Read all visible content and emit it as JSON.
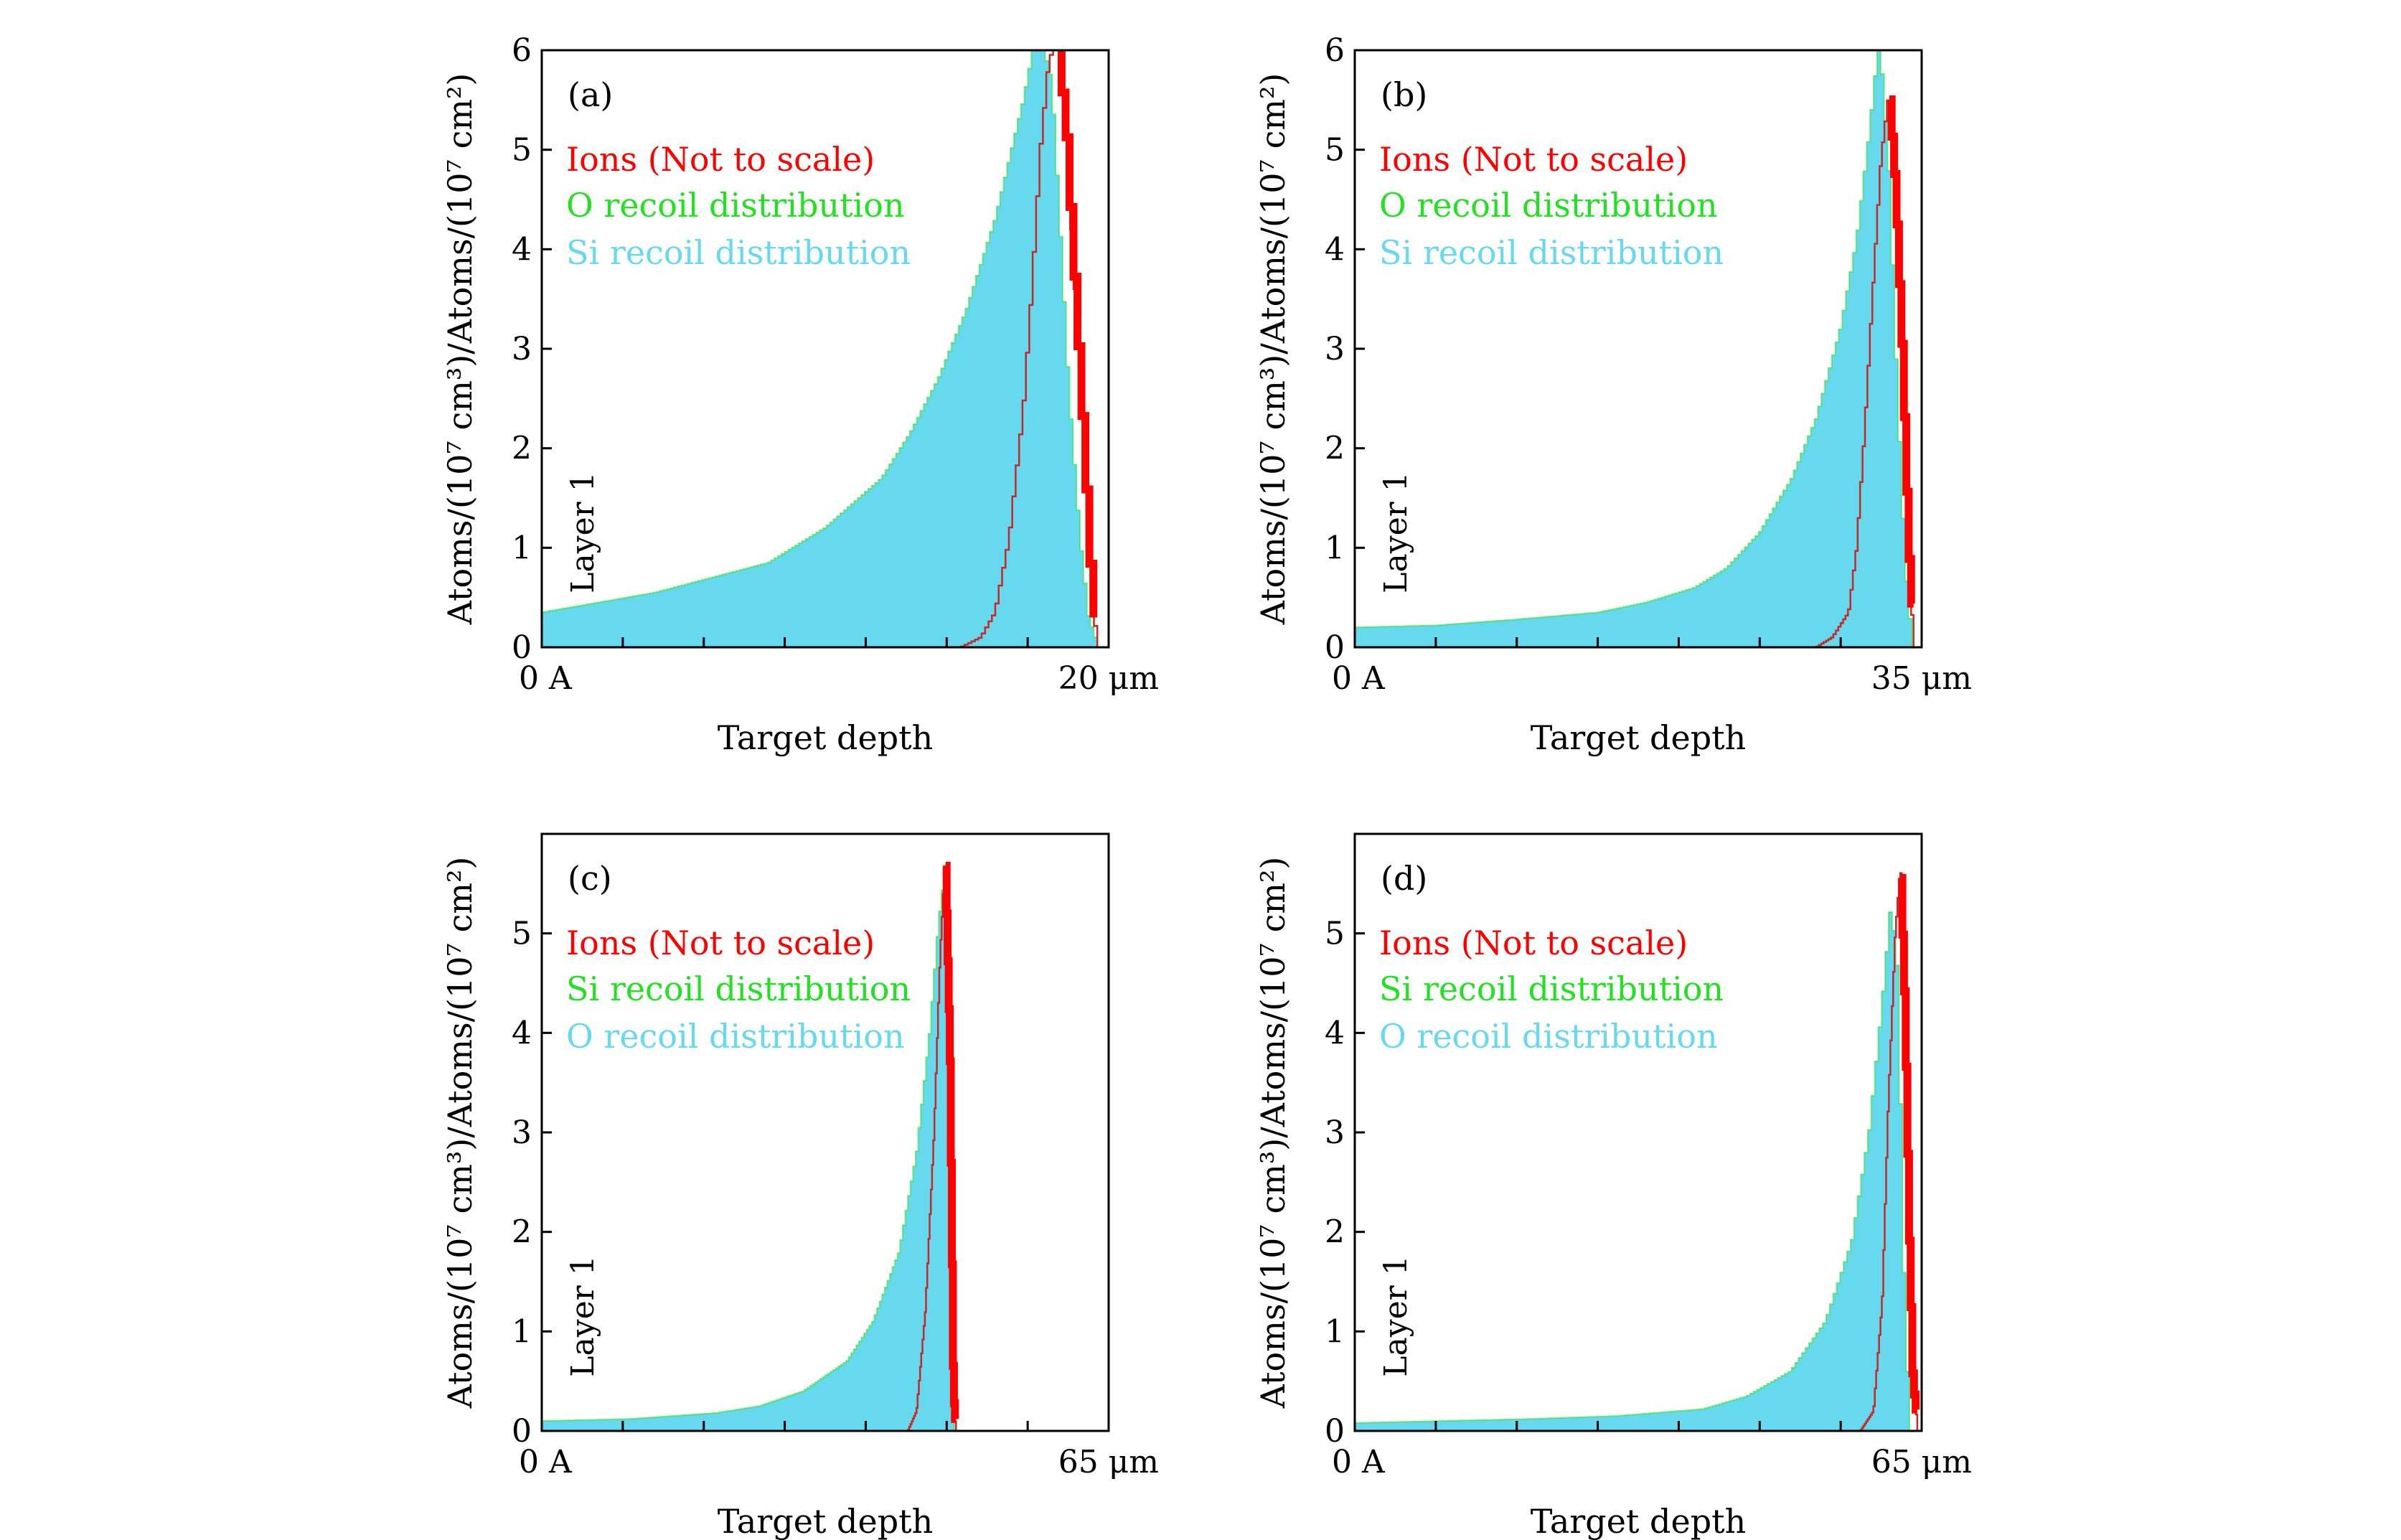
{
  "colors": {
    "ions": "#ff0000",
    "o_recoil": "#22e022",
    "si_recoil": "#66d9ee",
    "ion_line": "#c62828",
    "axis": "#000000"
  },
  "chart_data": [
    {
      "type": "area",
      "panel_label": "(a)",
      "xlabel": "Target depth",
      "ylabel": "Atoms/(10⁷ cm³)/Atoms/(10⁷ cm²)",
      "x_start_label": "0 A",
      "x_end_label": "20 μm",
      "layer_label": "Layer 1",
      "xlim": [
        0,
        20
      ],
      "ylim": [
        0,
        6
      ],
      "yticks": [
        "0",
        "1",
        "2",
        "3",
        "4",
        "5",
        "6"
      ],
      "legend": [
        "Ions (Not to scale)",
        "O recoil distribution",
        "Si recoil distribution"
      ],
      "legend_colors": [
        "ions",
        "o_recoil",
        "si_recoil"
      ],
      "series": [
        {
          "name": "Si recoil distribution",
          "x": [
            0,
            2,
            4,
            6,
            8,
            10,
            12,
            13,
            14,
            15,
            16,
            17,
            17.5,
            18,
            18.3,
            18.6,
            19,
            19.3,
            19.6
          ],
          "values": [
            0.35,
            0.45,
            0.55,
            0.7,
            0.85,
            1.2,
            1.7,
            2.15,
            2.7,
            3.4,
            4.3,
            5.5,
            6.25,
            5.7,
            4.2,
            2.6,
            1.1,
            0.3,
            0.05
          ]
        },
        {
          "name": "Ions (Not to scale)",
          "x": [
            14.8,
            15.5,
            16,
            16.5,
            17,
            17.3,
            17.6,
            17.9,
            18.2,
            18.5,
            18.8,
            19.1,
            19.4,
            19.6
          ],
          "values": [
            0,
            0.1,
            0.35,
            1.1,
            2.4,
            3.6,
            5.0,
            5.9,
            6.1,
            5.2,
            3.7,
            2.2,
            0.6,
            0.05
          ]
        }
      ]
    },
    {
      "type": "area",
      "panel_label": "(b)",
      "xlabel": "Target depth",
      "ylabel": "Atoms/(10⁷ cm³)/Atoms/(10⁷ cm²)",
      "x_start_label": "0 A",
      "x_end_label": "35 μm",
      "layer_label": "Layer 1",
      "xlim": [
        0,
        35
      ],
      "ylim": [
        0,
        6
      ],
      "yticks": [
        "0",
        "1",
        "2",
        "3",
        "4",
        "5",
        "6"
      ],
      "legend": [
        "Ions (Not to scale)",
        "O recoil distribution",
        "Si recoil distribution"
      ],
      "legend_colors": [
        "ions",
        "o_recoil",
        "si_recoil"
      ],
      "series": [
        {
          "name": "Si recoil distribution",
          "x": [
            0,
            5,
            10,
            15,
            18,
            21,
            23,
            25,
            27,
            28.5,
            30,
            31,
            31.8,
            32.4,
            33,
            33.5,
            34,
            34.4
          ],
          "values": [
            0.2,
            0.22,
            0.28,
            0.35,
            0.45,
            0.6,
            0.8,
            1.15,
            1.7,
            2.3,
            3.2,
            4.1,
            5.2,
            6.15,
            4.8,
            2.6,
            0.8,
            0.1
          ]
        },
        {
          "name": "Ions (Not to scale)",
          "x": [
            28.5,
            29.5,
            30.5,
            31,
            31.5,
            32,
            32.5,
            33,
            33.4,
            33.8,
            34.2,
            34.5
          ],
          "values": [
            0,
            0.1,
            0.35,
            1.0,
            2.2,
            3.6,
            4.9,
            5.6,
            4.6,
            3.0,
            1.0,
            0.1
          ]
        }
      ]
    },
    {
      "type": "area",
      "panel_label": "(c)",
      "xlabel": "Target depth",
      "ylabel": "Atoms/(10⁷ cm³)/Atoms/(10⁷ cm²)",
      "x_start_label": "0 A",
      "x_end_label": "65 μm",
      "layer_label": "Layer 1",
      "xlim": [
        0,
        65
      ],
      "ylim": [
        0,
        6
      ],
      "yticks": [
        "0",
        "1",
        "2",
        "3",
        "4",
        "5"
      ],
      "legend": [
        "Ions (Not to scale)",
        "Si recoil distribution",
        "O recoil distribution"
      ],
      "legend_colors": [
        "ions",
        "o_recoil",
        "si_recoil"
      ],
      "series": [
        {
          "name": "O recoil distribution",
          "x": [
            0,
            10,
            20,
            25,
            30,
            35,
            38,
            41,
            43,
            44.5,
            45.5,
            46.2,
            46.8,
            47.3
          ],
          "values": [
            0.1,
            0.12,
            0.18,
            0.25,
            0.4,
            0.7,
            1.1,
            1.8,
            2.8,
            4.0,
            5.1,
            5.6,
            3.2,
            0.2
          ]
        },
        {
          "name": "Ions (Not to scale)",
          "x": [
            42,
            43,
            44,
            45,
            45.7,
            46.3,
            46.8,
            47.2,
            47.5
          ],
          "values": [
            0,
            0.2,
            1.2,
            3.0,
            4.8,
            5.8,
            3.8,
            0.4,
            0.0
          ]
        }
      ]
    },
    {
      "type": "area",
      "panel_label": "(d)",
      "xlabel": "Target depth",
      "ylabel": "Atoms/(10⁷ cm³)/Atoms/(10⁷ cm²)",
      "x_start_label": "0 A",
      "x_end_label": "65 μm",
      "layer_label": "Layer 1",
      "xlim": [
        0,
        65
      ],
      "ylim": [
        0,
        6
      ],
      "yticks": [
        "0",
        "1",
        "2",
        "3",
        "4",
        "5"
      ],
      "legend": [
        "Ions (Not to scale)",
        "Si recoil distribution",
        "O recoil distribution"
      ],
      "legend_colors": [
        "ions",
        "o_recoil",
        "si_recoil"
      ],
      "series": [
        {
          "name": "O recoil distribution",
          "x": [
            0,
            10,
            20,
            30,
            40,
            45,
            50,
            54,
            57,
            59,
            60.5,
            61.5,
            62.3,
            63,
            63.6
          ],
          "values": [
            0.08,
            0.1,
            0.12,
            0.15,
            0.22,
            0.35,
            0.6,
            1.1,
            1.9,
            3.0,
            4.3,
            5.3,
            4.6,
            1.6,
            0.1
          ]
        },
        {
          "name": "Ions (Not to scale)",
          "x": [
            58,
            59.5,
            60.5,
            61.2,
            62,
            62.6,
            63.1,
            63.6,
            64,
            64.5
          ],
          "values": [
            0,
            0.2,
            1.3,
            3.3,
            5.0,
            5.7,
            4.2,
            1.9,
            0.5,
            0.1
          ]
        }
      ]
    }
  ]
}
